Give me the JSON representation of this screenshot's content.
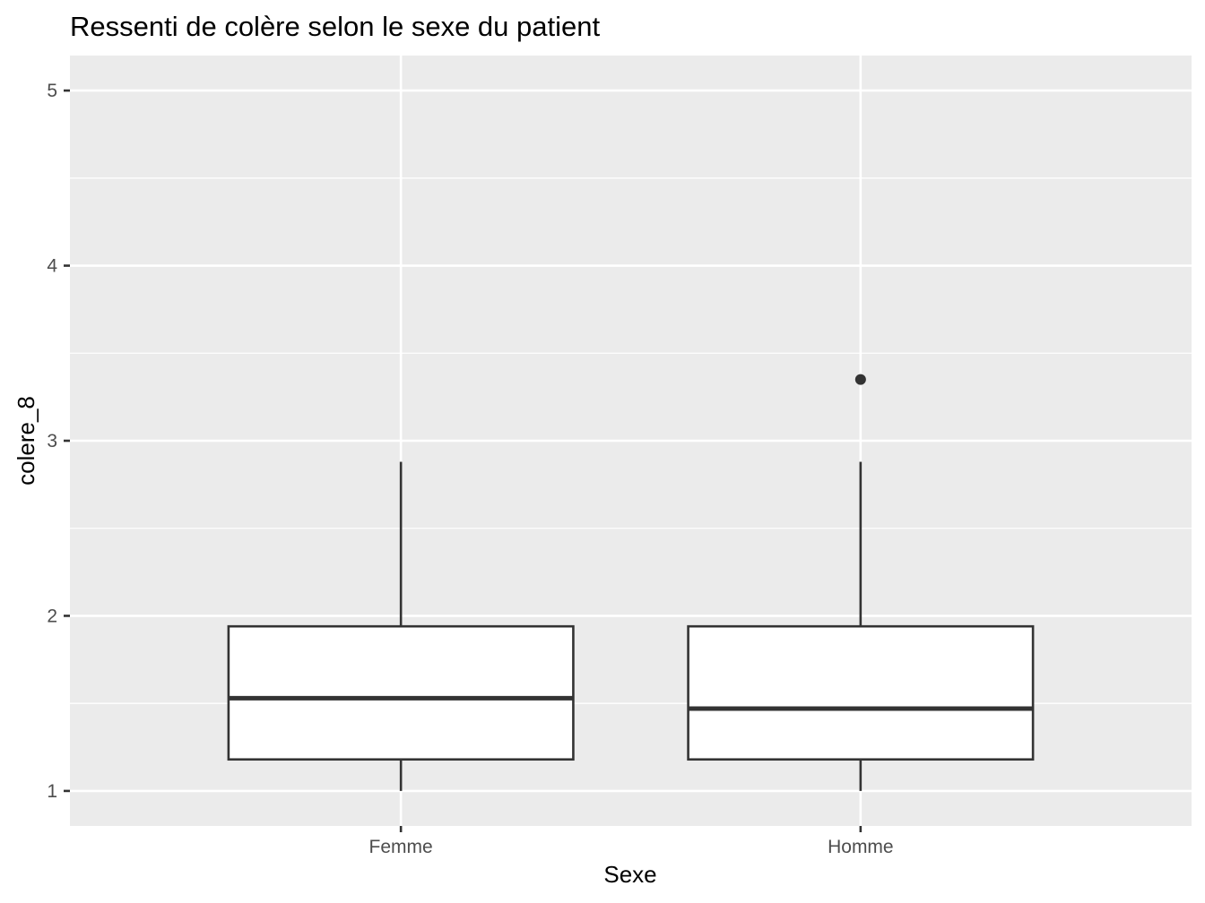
{
  "chart_data": {
    "type": "boxplot",
    "title": "Ressenti de colère selon le sexe du patient",
    "xlabel": "Sexe",
    "ylabel": "colere_8",
    "categories": [
      "Femme",
      "Homme"
    ],
    "ylim": [
      0.8,
      5.2
    ],
    "yticks": [
      1,
      2,
      3,
      4,
      5
    ],
    "yticks_labels": [
      "1",
      "2",
      "3",
      "4",
      "5"
    ],
    "grid": true,
    "legend": "none",
    "colors": {
      "panel_bg": "#ebebeb",
      "grid": "#ffffff",
      "box_fill": "#ffffff",
      "box_stroke": "#333333",
      "tick": "#333333"
    },
    "boxes": [
      {
        "category": "Femme",
        "whisker_low": 1.0,
        "q1": 1.18,
        "median": 1.53,
        "q3": 1.94,
        "whisker_high": 2.88,
        "outliers": []
      },
      {
        "category": "Homme",
        "whisker_low": 1.0,
        "q1": 1.18,
        "median": 1.47,
        "q3": 1.94,
        "whisker_high": 2.88,
        "outliers": [
          3.35
        ]
      }
    ]
  }
}
